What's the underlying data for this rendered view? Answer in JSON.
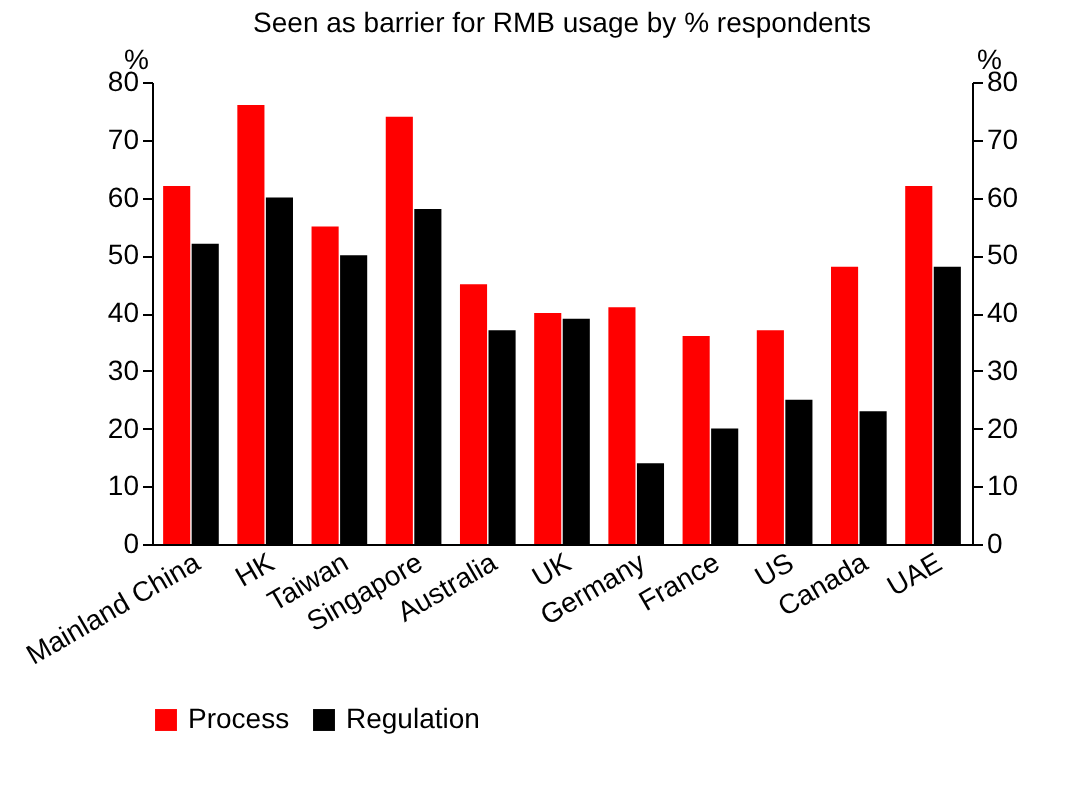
{
  "chart_data": {
    "type": "bar",
    "title": "Seen as barrier for RMB usage by % respondents",
    "ylabel": "%",
    "y2label": "%",
    "categories": [
      "Mainland China",
      "HK",
      "Taiwan",
      "Singapore",
      "Australia",
      "UK",
      "Germany",
      "France",
      "US",
      "Canada",
      "UAE"
    ],
    "series": [
      {
        "name": "Process",
        "color": "#ff0000",
        "values": [
          62,
          76,
          55,
          74,
          45,
          40,
          41,
          36,
          37,
          48,
          62
        ]
      },
      {
        "name": "Regulation",
        "color": "#000000",
        "values": [
          52,
          60,
          50,
          58,
          37,
          39,
          14,
          20,
          25,
          23,
          48
        ]
      }
    ],
    "ylim": [
      0,
      80
    ],
    "yticks": [
      0,
      10,
      20,
      30,
      40,
      50,
      60,
      70,
      80
    ],
    "y2lim": [
      0,
      80
    ],
    "y2ticks": [
      0,
      10,
      20,
      30,
      40,
      50,
      60,
      70,
      80
    ],
    "grid": false,
    "legend": "bottom"
  }
}
